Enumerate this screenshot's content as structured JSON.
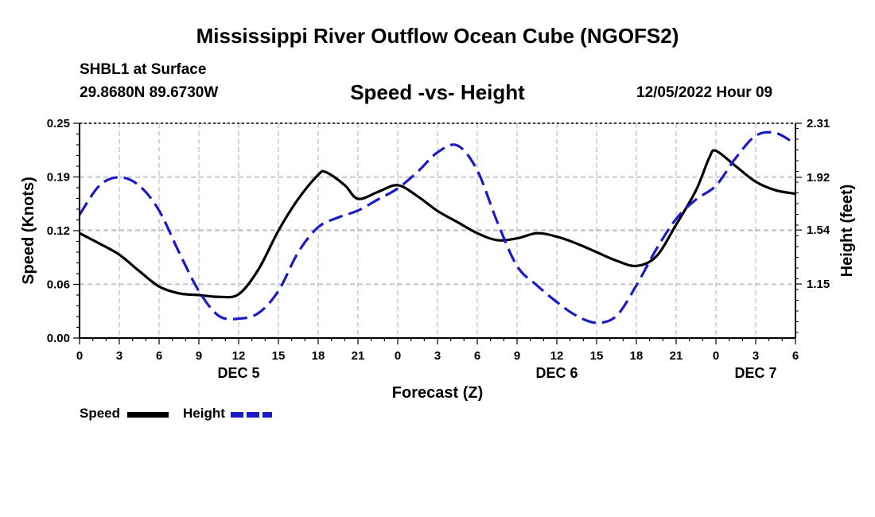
{
  "header": {
    "title": "Mississippi River Outflow Ocean Cube (NGOFS2)",
    "station": "SHBL1 at Surface",
    "coords": "29.8680N  89.6730W",
    "subtitle": "Speed -vs- Height",
    "runtime": "12/05/2022 Hour 09",
    "title_bottom": "Mississippi River Outflow Ocean Cube (NGOFS2)"
  },
  "legend": {
    "speed_label": "Speed",
    "height_label": "Height"
  },
  "chart_data": {
    "type": "line",
    "title": "Speed -vs- Height",
    "xlabel": "Forecast (Z)",
    "ylabel": "Speed (Knots)",
    "y2label": "Height (feet)",
    "x_unit": "forecast hours since 12/05/2022 00Z",
    "xlim": [
      0,
      54
    ],
    "ylim": [
      0,
      0.25
    ],
    "y2lim": [
      0.76,
      2.31
    ],
    "x_ticks": [
      0,
      3,
      6,
      9,
      12,
      15,
      18,
      21,
      24,
      27,
      30,
      33,
      36,
      39,
      42,
      45,
      48,
      51,
      54
    ],
    "x_tick_labels": [
      "0",
      "3",
      "6",
      "9",
      "12",
      "15",
      "18",
      "21",
      "0",
      "3",
      "6",
      "9",
      "12",
      "15",
      "18",
      "21",
      "0",
      "3",
      "6"
    ],
    "date_labels": [
      {
        "x": 12,
        "label": "DEC 5"
      },
      {
        "x": 36,
        "label": "DEC 6"
      },
      {
        "x": 51,
        "label": "DEC 7"
      }
    ],
    "y_ticks": [
      0,
      0.0625,
      0.125,
      0.1875,
      0.25
    ],
    "y_tick_labels": [
      "0.00",
      "0.06",
      "0.12",
      "0.19",
      "0.25"
    ],
    "y2_ticks": [
      1.15,
      1.54,
      1.92,
      2.31
    ],
    "y2_tick_labels": [
      "1.15",
      "1.54",
      "1.92",
      "2.31"
    ],
    "grid": true,
    "series": [
      {
        "name": "Speed",
        "axis": "left",
        "color": "#000000",
        "dash": "solid",
        "x": [
          0,
          1.5,
          3,
          4.5,
          6,
          7.5,
          9,
          10.5,
          12,
          13.5,
          15,
          16.5,
          18,
          18.6,
          20,
          21,
          22.5,
          24,
          25.5,
          27,
          28.5,
          30,
          31.5,
          33,
          34.5,
          36,
          37.5,
          39,
          40.5,
          42,
          43.5,
          45,
          46.5,
          47.5,
          48,
          49.5,
          51,
          52.5,
          54
        ],
        "values": [
          0.122,
          0.11,
          0.097,
          0.078,
          0.06,
          0.052,
          0.05,
          0.048,
          0.051,
          0.08,
          0.125,
          0.162,
          0.19,
          0.193,
          0.178,
          0.162,
          0.17,
          0.178,
          0.165,
          0.148,
          0.135,
          0.122,
          0.114,
          0.116,
          0.122,
          0.118,
          0.11,
          0.1,
          0.09,
          0.084,
          0.095,
          0.132,
          0.172,
          0.21,
          0.218,
          0.2,
          0.182,
          0.172,
          0.168
        ]
      },
      {
        "name": "Height",
        "axis": "right",
        "color": "#1a1ac8",
        "dash": "dashed",
        "x": [
          0,
          1.5,
          3,
          4.5,
          6,
          7.5,
          9,
          10.5,
          12,
          13.5,
          15,
          16.5,
          18,
          19.5,
          21,
          22.5,
          24,
          25.5,
          27,
          28.5,
          30,
          31.5,
          33,
          34.5,
          36,
          37.5,
          39,
          40.5,
          42,
          43.5,
          45,
          46.5,
          48,
          49.5,
          51,
          52.5,
          54
        ],
        "values": [
          1.65,
          1.86,
          1.92,
          1.86,
          1.68,
          1.38,
          1.1,
          0.92,
          0.9,
          0.94,
          1.1,
          1.38,
          1.56,
          1.63,
          1.68,
          1.76,
          1.84,
          1.96,
          2.1,
          2.15,
          1.97,
          1.6,
          1.28,
          1.14,
          1.02,
          0.92,
          0.87,
          0.92,
          1.14,
          1.4,
          1.62,
          1.76,
          1.86,
          2.06,
          2.22,
          2.24,
          2.16
        ]
      }
    ]
  }
}
